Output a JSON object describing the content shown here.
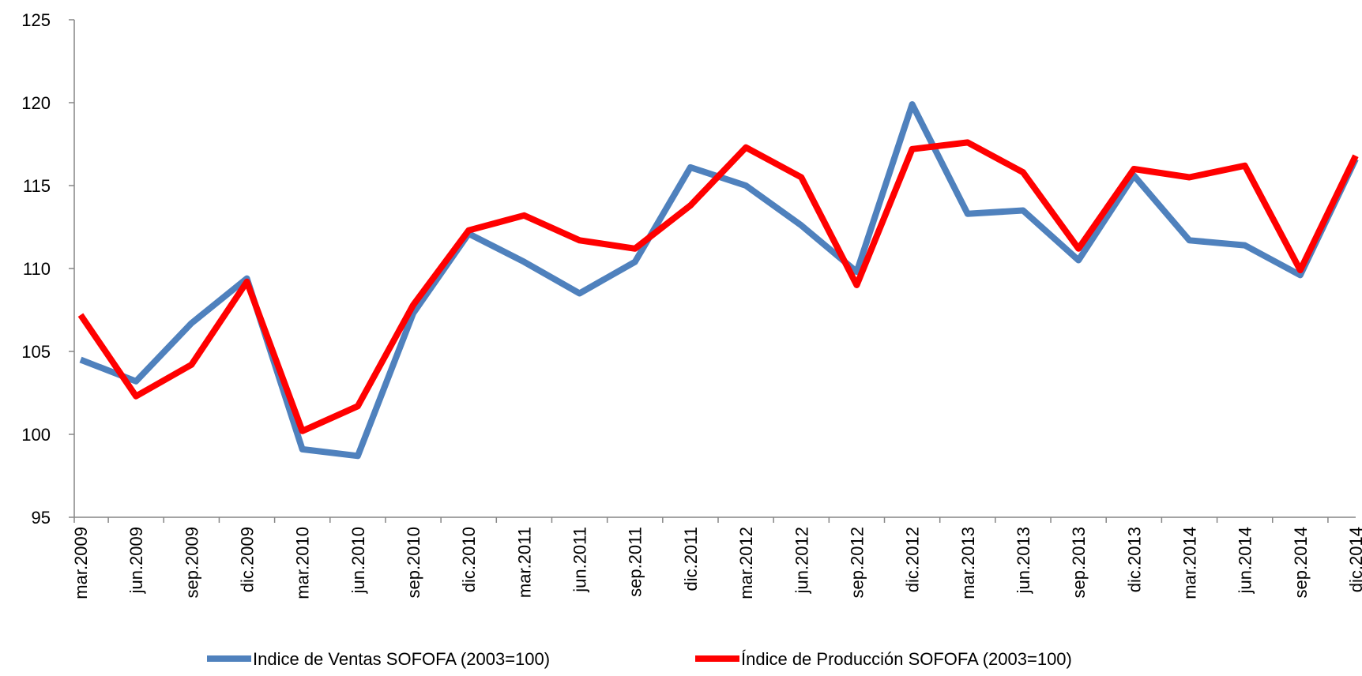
{
  "chart_data": {
    "type": "line",
    "categories": [
      "mar.2009",
      "jun.2009",
      "sep.2009",
      "dic.2009",
      "mar.2010",
      "jun.2010",
      "sep.2010",
      "dic.2010",
      "mar.2011",
      "jun.2011",
      "sep.2011",
      "dic.2011",
      "mar.2012",
      "jun.2012",
      "sep.2012",
      "dic.2012",
      "mar.2013",
      "jun.2013",
      "sep.2013",
      "dic.2013",
      "mar.2014",
      "jun.2014",
      "sep.2014",
      "dic.2014"
    ],
    "series": [
      {
        "name": "Indice de Ventas SOFOFA (2003=100)",
        "color": "#4f81bd",
        "values": [
          104.5,
          103.2,
          106.7,
          109.4,
          99.1,
          98.7,
          107.3,
          112.1,
          110.4,
          108.5,
          110.4,
          116.1,
          115.0,
          112.6,
          109.8,
          119.9,
          113.3,
          113.5,
          110.5,
          115.6,
          111.7,
          111.4,
          109.6,
          116.6
        ]
      },
      {
        "name": "Índice de Producción SOFOFA (2003=100)",
        "color": "#ff0000",
        "values": [
          107.2,
          102.3,
          104.2,
          109.2,
          100.2,
          101.7,
          107.8,
          112.3,
          113.2,
          111.7,
          111.2,
          113.8,
          117.3,
          115.5,
          109.0,
          117.2,
          117.6,
          115.8,
          111.2,
          116.0,
          115.5,
          116.2,
          109.9,
          116.8
        ]
      }
    ],
    "ylim": [
      95,
      125
    ],
    "yticks": [
      95,
      100,
      105,
      110,
      115,
      120,
      125
    ],
    "grid": false,
    "legend": "bottom"
  }
}
